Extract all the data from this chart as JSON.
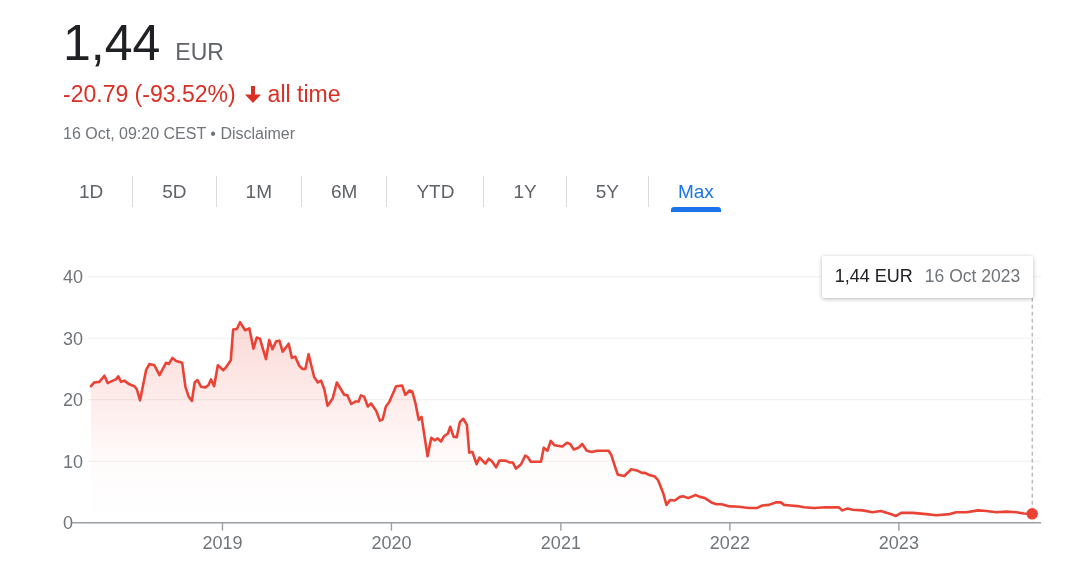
{
  "chart_data": {
    "type": "area",
    "title": "1,44",
    "subtitle": "-20.79 (-93.52%)",
    "annotations": [
      "EUR",
      "all time",
      "16 Oct, 09:20 CEST • Disclaimer",
      "1,44 EUR",
      "1D",
      "5D",
      "1M",
      "6M",
      "YTD",
      "1Y",
      "5Y",
      "Max"
    ],
    "xlim": [
      "2018-02-10",
      "2023-11-04"
    ],
    "xticks": [
      "2019",
      "2020",
      "2021",
      "2022",
      "2023"
    ],
    "ylim": [
      0,
      40
    ],
    "yticks": [
      0,
      10,
      20,
      30,
      40
    ],
    "grid": "y",
    "ref_lines": [
      {
        "axis": "x",
        "value": "2023-10-16",
        "label": "16 Oct 2023",
        "color": "#9aa0a6",
        "line_style": "dashed"
      }
    ],
    "series": [
      {
        "color": "#ea4335",
        "x": [
          "2018-03-23",
          "2018-03-30",
          "2018-04-10",
          "2018-04-21",
          "2018-04-28",
          "2018-05-09",
          "2018-05-16",
          "2018-05-21",
          "2018-05-27",
          "2018-06-03",
          "2018-06-14",
          "2018-06-25",
          "2018-06-30",
          "2018-07-07",
          "2018-07-20",
          "2018-07-27",
          "2018-08-07",
          "2018-08-18",
          "2018-09-01",
          "2018-09-07",
          "2018-09-15",
          "2018-09-23",
          "2018-10-06",
          "2018-10-13",
          "2018-10-20",
          "2018-10-27",
          "2018-11-02",
          "2018-11-08",
          "2018-11-16",
          "2018-11-25",
          "2018-12-02",
          "2018-12-07",
          "2018-12-14",
          "2018-12-22",
          "2019-01-03",
          "2019-01-09",
          "2019-01-19",
          "2019-01-24",
          "2019-02-01",
          "2019-02-08",
          "2019-02-19",
          "2019-02-28",
          "2019-03-09",
          "2019-03-16",
          "2019-03-23",
          "2019-04-05",
          "2019-04-12",
          "2019-04-19",
          "2019-04-27",
          "2019-05-04",
          "2019-05-11",
          "2019-05-24",
          "2019-05-31",
          "2019-06-07",
          "2019-06-16",
          "2019-06-23",
          "2019-06-29",
          "2019-07-06",
          "2019-07-18",
          "2019-07-26",
          "2019-08-02",
          "2019-08-09",
          "2019-08-16",
          "2019-08-27",
          "2019-09-05",
          "2019-09-21",
          "2019-09-28",
          "2019-10-06",
          "2019-10-15",
          "2019-10-22",
          "2019-10-27",
          "2019-11-03",
          "2019-11-11",
          "2019-11-18",
          "2019-11-29",
          "2019-12-07",
          "2019-12-13",
          "2019-12-20",
          "2019-12-27",
          "2020-01-11",
          "2020-01-24",
          "2020-01-31",
          "2020-02-09",
          "2020-02-15",
          "2020-02-22",
          "2020-02-29",
          "2020-03-06",
          "2020-03-19",
          "2020-03-27",
          "2020-04-03",
          "2020-04-10",
          "2020-04-17",
          "2020-04-24",
          "2020-05-02",
          "2020-05-07",
          "2020-05-14",
          "2020-05-21",
          "2020-05-28",
          "2020-06-04",
          "2020-06-12",
          "2020-06-17",
          "2020-06-24",
          "2020-07-03",
          "2020-07-09",
          "2020-07-22",
          "2020-07-29",
          "2020-08-05",
          "2020-08-14",
          "2020-08-21",
          "2020-09-03",
          "2020-09-12",
          "2020-09-19",
          "2020-09-26",
          "2020-10-07",
          "2020-10-16",
          "2020-10-21",
          "2020-10-28",
          "2020-11-19",
          "2020-11-25",
          "2020-12-03",
          "2020-12-10",
          "2020-12-18",
          "2021-01-04",
          "2021-01-14",
          "2021-01-21",
          "2021-01-29",
          "2021-02-08",
          "2021-02-16",
          "2021-02-26",
          "2021-03-09",
          "2021-03-20",
          "2021-04-14",
          "2021-04-20",
          "2021-04-28",
          "2021-05-04",
          "2021-05-18",
          "2021-06-02",
          "2021-06-14",
          "2021-06-25",
          "2021-07-02",
          "2021-07-09",
          "2021-07-23",
          "2021-07-30",
          "2021-08-10",
          "2021-08-17",
          "2021-08-25",
          "2021-09-04",
          "2021-09-15",
          "2021-09-22",
          "2021-10-03",
          "2021-10-19",
          "2021-10-28",
          "2021-11-08",
          "2021-11-22",
          "2021-12-03",
          "2021-12-14",
          "2021-12-28",
          "2022-01-20",
          "2022-02-11",
          "2022-03-01",
          "2022-03-12",
          "2022-03-26",
          "2022-04-10",
          "2022-04-21",
          "2022-04-28",
          "2022-05-12",
          "2022-05-27",
          "2022-06-10",
          "2022-07-02",
          "2022-07-27",
          "2022-08-24",
          "2022-09-01",
          "2022-09-12",
          "2022-09-23",
          "2022-10-15",
          "2022-11-05",
          "2022-11-23",
          "2022-12-11",
          "2022-12-26",
          "2023-01-06",
          "2023-01-31",
          "2023-03-01",
          "2023-03-23",
          "2023-04-21",
          "2023-05-05",
          "2023-05-27",
          "2023-06-21",
          "2023-07-09",
          "2023-07-31",
          "2023-08-21",
          "2023-09-12",
          "2023-09-28",
          "2023-10-16"
        ],
        "values": [
          22.2,
          22.8,
          22.9,
          23.9,
          22.7,
          23.1,
          23.3,
          23.8,
          22.9,
          23.1,
          22.5,
          22.2,
          21.7,
          19.9,
          24.8,
          25.8,
          25.6,
          24.0,
          26.0,
          25.8,
          26.8,
          26.3,
          26.0,
          22.1,
          20.5,
          19.8,
          22.8,
          23.2,
          22.1,
          22.0,
          22.4,
          23.3,
          22.2,
          25.6,
          24.8,
          25.3,
          26.4,
          31.4,
          31.5,
          32.6,
          31.3,
          31.6,
          28.3,
          30.1,
          29.9,
          26.6,
          29.7,
          28.2,
          29.5,
          29.6,
          27.8,
          29.1,
          26.8,
          27.0,
          25.5,
          25.0,
          25.0,
          27.4,
          23.7,
          22.8,
          23.1,
          21.7,
          19.0,
          20.2,
          22.8,
          20.8,
          20.7,
          19.3,
          19.7,
          19.7,
          20.7,
          20.5,
          18.9,
          19.4,
          18.2,
          16.6,
          16.8,
          18.9,
          19.6,
          22.2,
          22.3,
          20.8,
          21.5,
          21.3,
          19.4,
          16.7,
          17.2,
          10.8,
          13.8,
          13.4,
          13.7,
          13.2,
          14.1,
          14.5,
          15.6,
          14.0,
          13.9,
          16.4,
          16.9,
          15.9,
          11.4,
          11.5,
          9.5,
          10.6,
          9.6,
          10.4,
          10.0,
          9.0,
          10.1,
          10.1,
          9.8,
          9.8,
          8.8,
          9.5,
          10.9,
          10.7,
          9.9,
          9.9,
          12.2,
          11.7,
          13.3,
          12.6,
          12.4,
          13.0,
          12.8,
          11.9,
          12.2,
          12.8,
          11.7,
          11.5,
          11.7,
          11.7,
          11.0,
          9.1,
          7.8,
          7.6,
          8.7,
          8.5,
          8.1,
          8.1,
          7.8,
          7.5,
          6.9,
          4.8,
          2.9,
          3.7,
          3.6,
          4.2,
          4.3,
          4.0,
          4.5,
          4.2,
          4.0,
          3.3,
          3.0,
          3.0,
          2.7,
          2.6,
          2.4,
          2.4,
          2.8,
          2.9,
          3.3,
          3.3,
          2.9,
          2.8,
          2.7,
          2.5,
          2.4,
          2.5,
          2.5,
          2.0,
          2.3,
          2.1,
          2.0,
          1.7,
          1.9,
          1.5,
          1.1,
          1.6,
          1.6,
          1.4,
          1.2,
          1.4,
          1.7,
          1.7,
          2.0,
          1.9,
          1.7,
          1.8,
          1.7,
          1.5,
          1.44
        ]
      },
      {
        "type": "scatter",
        "color": "#ea4335",
        "marker": "circle",
        "x": [
          "2023-10-16"
        ],
        "values": [
          1.44
        ]
      }
    ]
  }
}
